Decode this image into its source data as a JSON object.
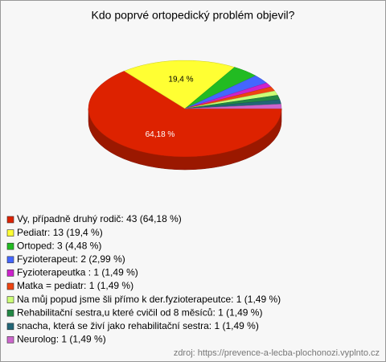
{
  "chart_data": {
    "type": "pie3d",
    "title": "Kdo poprvé ortopedický problém objevil?",
    "categories": [
      "Vy, případně druhý rodič: 43 (64,18 %)",
      "Pediatr: 13 (19,4 %)",
      "Ortoped: 3 (4,48 %)",
      "Fyzioterapeut: 2 (2,99 %)",
      "Fyzioterapeutka : 1 (1,49 %)",
      "Matka = pediatr: 1 (1,49 %)",
      "Na můj popud jsme šli přímo k der.fyzioterapeutce: 1 (1,49 %)",
      "Rehabilitační sestra,u které cvičil od 8 měsíců: 1 (1,49 %)",
      "snacha, která se živí jako rehabilitační sestra: 1 (1,49 %)",
      "Neurolog: 1 (1,49 %)"
    ],
    "values": [
      64.18,
      19.4,
      4.48,
      2.99,
      1.49,
      1.49,
      1.49,
      1.49,
      1.49,
      1.49
    ],
    "value_labels": [
      "64,18 %",
      "19,4 %",
      null,
      null,
      null,
      null,
      null,
      null,
      null,
      null
    ],
    "colors": [
      "#dd2200",
      "#ffff33",
      "#22bb22",
      "#4466ff",
      "#cc22cc",
      "#ee4411",
      "#ccff77",
      "#228844",
      "#226677",
      "#cc66cc"
    ],
    "source": "zdroj: https://prevence-a-lecba-plochonozi.vyplnto.cz"
  }
}
